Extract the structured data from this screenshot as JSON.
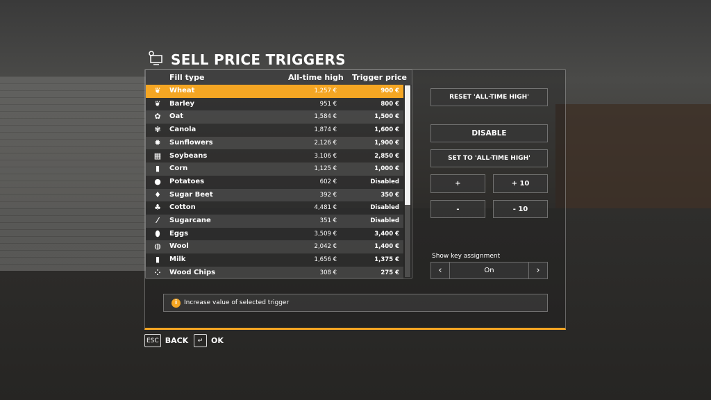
{
  "title": "SELL PRICE TRIGGERS",
  "table": {
    "headers": {
      "fill_type": "Fill type",
      "all_time_high": "All-time high",
      "trigger_price": "Trigger price"
    },
    "rows": [
      {
        "name": "Wheat",
        "icon": "wheat-icon",
        "glyph": "❦",
        "ath": "1,257 €",
        "trigger": "900 €",
        "selected": true
      },
      {
        "name": "Barley",
        "icon": "barley-icon",
        "glyph": "❦",
        "ath": "951 €",
        "trigger": "800 €"
      },
      {
        "name": "Oat",
        "icon": "oat-icon",
        "glyph": "✿",
        "ath": "1,584 €",
        "trigger": "1,500 €"
      },
      {
        "name": "Canola",
        "icon": "canola-icon",
        "glyph": "✾",
        "ath": "1,874 €",
        "trigger": "1,600 €"
      },
      {
        "name": "Sunflowers",
        "icon": "sunflower-icon",
        "glyph": "✹",
        "ath": "2,126 €",
        "trigger": "1,900 €"
      },
      {
        "name": "Soybeans",
        "icon": "soybean-icon",
        "glyph": "▦",
        "ath": "3,106 €",
        "trigger": "2,850 €"
      },
      {
        "name": "Corn",
        "icon": "corn-icon",
        "glyph": "▮",
        "ath": "1,125 €",
        "trigger": "1,000 €"
      },
      {
        "name": "Potatoes",
        "icon": "potato-icon",
        "glyph": "●",
        "ath": "602 €",
        "trigger": "Disabled"
      },
      {
        "name": "Sugar Beet",
        "icon": "sugar-beet-icon",
        "glyph": "♦",
        "ath": "392 €",
        "trigger": "350 €"
      },
      {
        "name": "Cotton",
        "icon": "cotton-icon",
        "glyph": "♣",
        "ath": "4,481 €",
        "trigger": "Disabled"
      },
      {
        "name": "Sugarcane",
        "icon": "sugarcane-icon",
        "glyph": "⁄",
        "ath": "351 €",
        "trigger": "Disabled"
      },
      {
        "name": "Eggs",
        "icon": "egg-icon",
        "glyph": "⬮",
        "ath": "3,509 €",
        "trigger": "3,400 €"
      },
      {
        "name": "Wool",
        "icon": "wool-icon",
        "glyph": "◍",
        "ath": "2,042 €",
        "trigger": "1,400 €"
      },
      {
        "name": "Milk",
        "icon": "milk-icon",
        "glyph": "▮",
        "ath": "1,656 €",
        "trigger": "1,375 €"
      },
      {
        "name": "Wood Chips",
        "icon": "wood-chips-icon",
        "glyph": "⁘",
        "ath": "308 €",
        "trigger": "275 €"
      }
    ]
  },
  "buttons": {
    "reset": "RESET 'ALL-TIME HIGH'",
    "disable": "DISABLE",
    "set_to": "SET TO 'ALL-TIME HIGH'",
    "plus": "+",
    "plus10": "+ 10",
    "minus": "-",
    "minus10": "- 10"
  },
  "key_assignment": {
    "label": "Show key assignment",
    "value": "On"
  },
  "info": "Increase value of selected trigger",
  "footer": {
    "back_key": "ESC",
    "back": "BACK",
    "ok_key": "↵",
    "ok": "OK"
  },
  "colors": {
    "accent": "#f5a623"
  }
}
